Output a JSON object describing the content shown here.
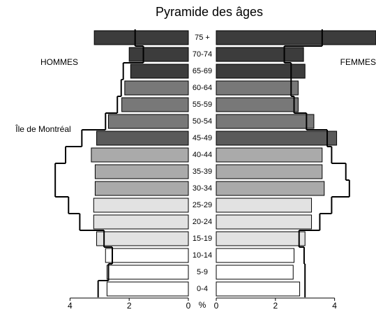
{
  "chart_data": {
    "type": "pyramid",
    "title": "Pyramide des âges",
    "categories": [
      "75 +",
      "70-74",
      "65-69",
      "60-64",
      "55-59",
      "50-54",
      "45-49",
      "40-44",
      "35-39",
      "30-34",
      "25-29",
      "20-24",
      "15-19",
      "10-14",
      "5-9",
      "0-4"
    ],
    "colors": [
      "#3c3c3c",
      "#3c3c3c",
      "#3c3c3c",
      "#787878",
      "#787878",
      "#787878",
      "#5a5a5a",
      "#aaaaaa",
      "#aaaaaa",
      "#aaaaaa",
      "#e2e2e2",
      "#e2e2e2",
      "#e2e2e2",
      "#ffffff",
      "#ffffff",
      "#ffffff"
    ],
    "series": [
      {
        "name": "HOMMES",
        "side": "left",
        "values": [
          3.18,
          2.0,
          1.95,
          2.15,
          2.25,
          2.7,
          3.1,
          3.28,
          3.15,
          3.15,
          3.2,
          3.2,
          3.1,
          2.8,
          2.75,
          2.75
        ]
      },
      {
        "name": "FEMMES",
        "side": "right",
        "values": [
          5.4,
          2.95,
          3.0,
          2.77,
          2.77,
          3.3,
          4.07,
          3.58,
          3.58,
          3.65,
          3.22,
          3.22,
          3.0,
          2.63,
          2.6,
          2.82
        ]
      }
    ],
    "outline": {
      "name": "Île de Montréal",
      "color": "#000000",
      "left": [
        1.8,
        1.52,
        2.2,
        2.27,
        2.4,
        2.8,
        3.6,
        4.15,
        4.5,
        4.5,
        4.05,
        3.67,
        2.85,
        2.57,
        2.7,
        3.05
      ],
      "right": [
        3.58,
        2.3,
        2.53,
        2.53,
        2.63,
        3.05,
        3.75,
        3.9,
        4.38,
        4.5,
        3.9,
        3.5,
        2.8,
        2.97,
        3.0,
        3.0
      ]
    },
    "x_unit_label": "%",
    "xlim": [
      0,
      5.4
    ],
    "xticks": [
      0,
      2,
      4
    ]
  }
}
